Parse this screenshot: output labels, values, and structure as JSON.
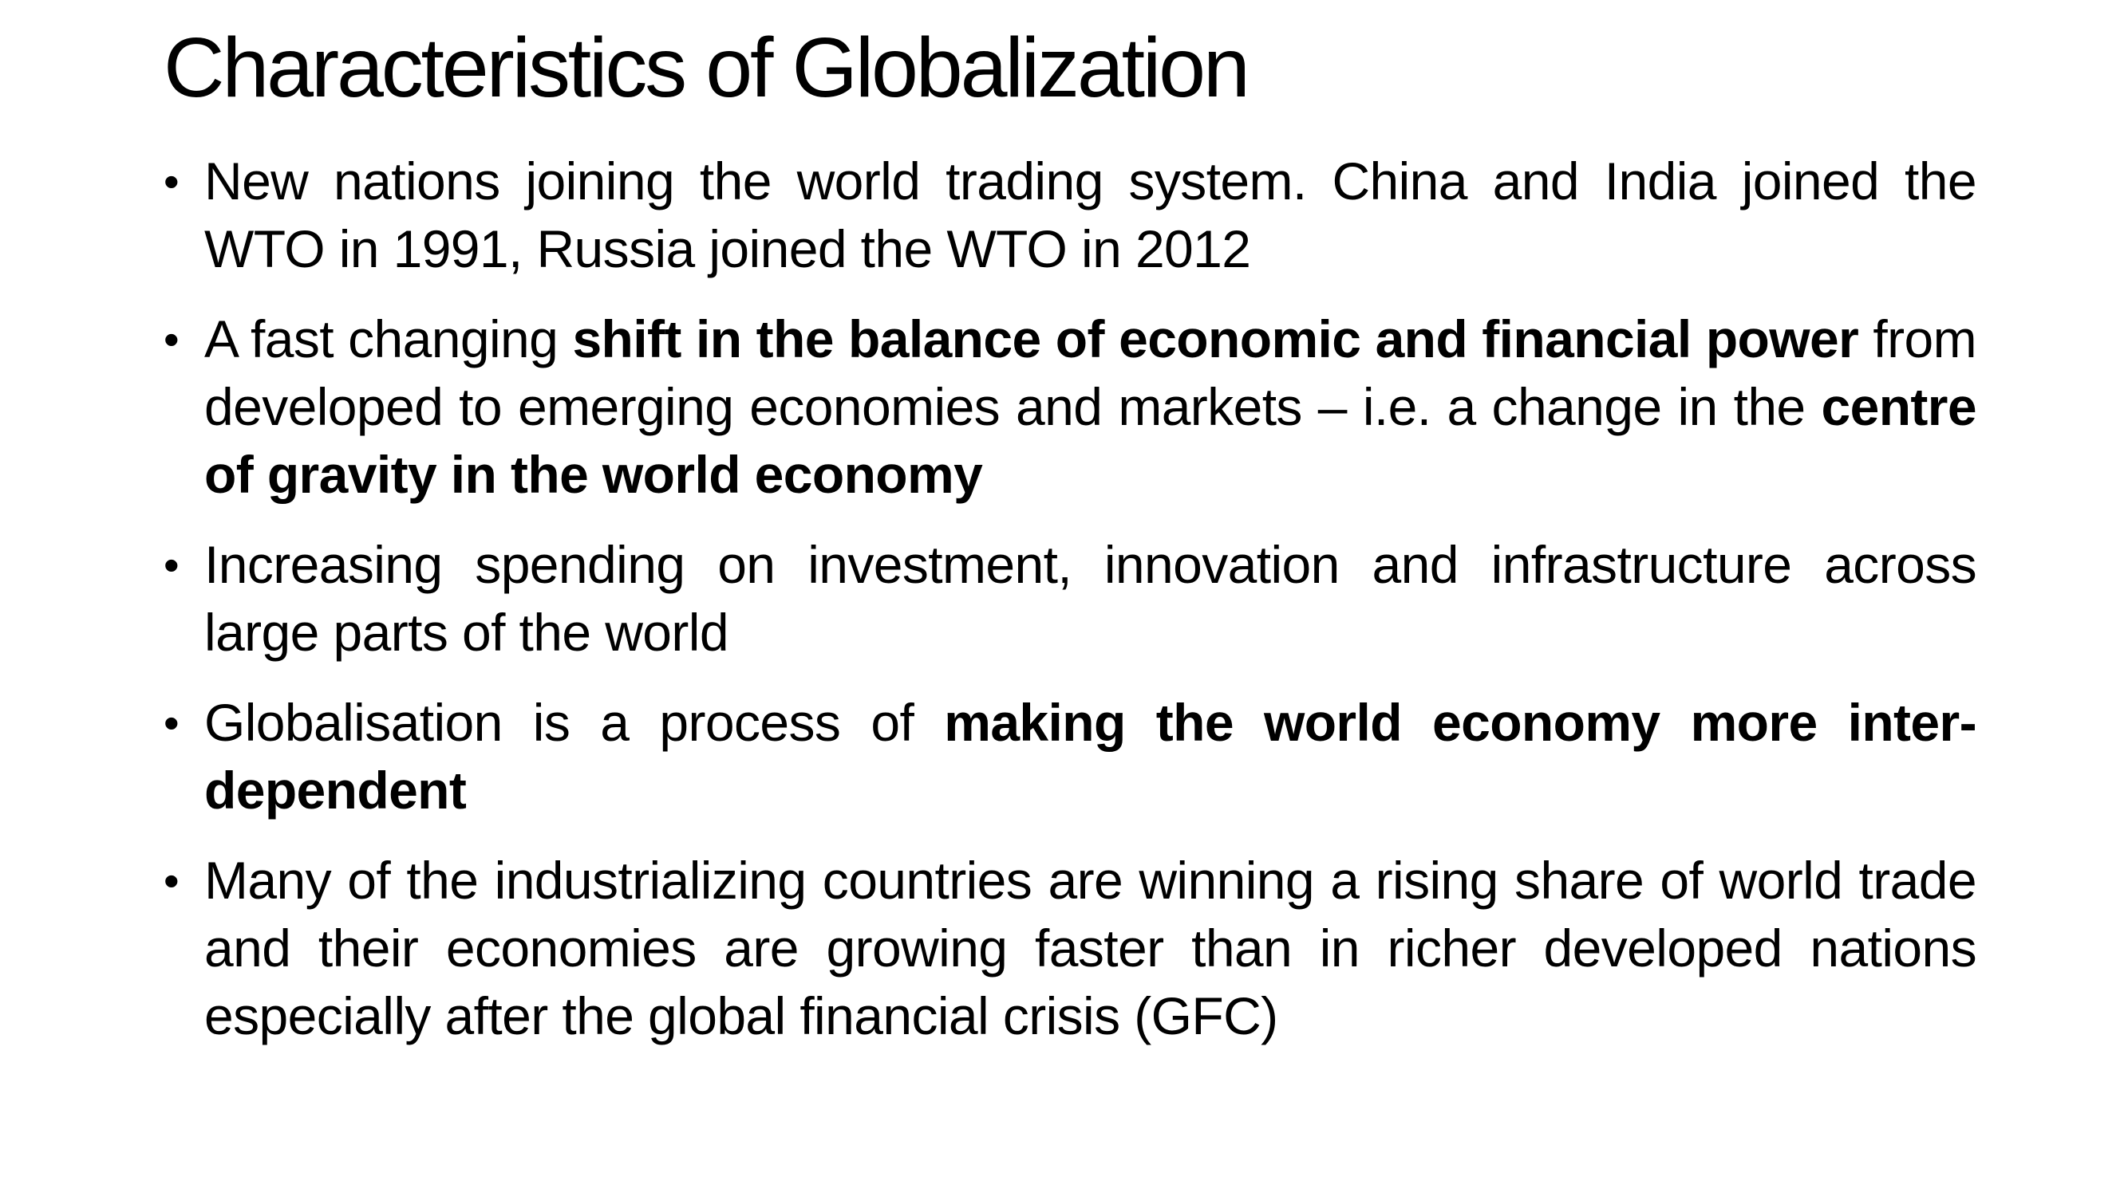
{
  "slide": {
    "title": "Characteristics of Globalization",
    "bullet_symbol": "•",
    "bullets": [
      {
        "segments": [
          {
            "text": "New nations joining the world trading system. China and India joined the WTO in 1991, Russia joined the WTO in 2012",
            "bold": false
          }
        ]
      },
      {
        "segments": [
          {
            "text": "A fast changing ",
            "bold": false
          },
          {
            "text": "shift in the balance of economic and financial power",
            "bold": true
          },
          {
            "text": " from developed to emerging economies and markets – i.e. a change in the ",
            "bold": false
          },
          {
            "text": "centre of gravity in the world economy",
            "bold": true
          }
        ]
      },
      {
        "segments": [
          {
            "text": "Increasing spending on investment, innovation and infrastructure across large parts of the world",
            "bold": false
          }
        ]
      },
      {
        "segments": [
          {
            "text": "Globalisation is a process of ",
            "bold": false
          },
          {
            "text": "making the world economy more inter-dependent",
            "bold": true
          }
        ]
      },
      {
        "segments": [
          {
            "text": "Many of the industrializing countries are winning a rising share of world trade and their economies are growing faster than in richer developed nations especially after the global financial crisis (GFC)",
            "bold": false
          }
        ]
      }
    ]
  }
}
